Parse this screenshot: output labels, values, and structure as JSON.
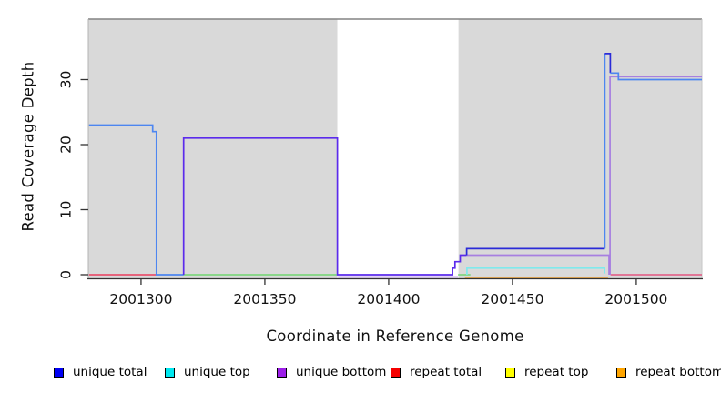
{
  "figure": {
    "xlabel": "Coordinate in Reference Genome",
    "ylabel": "Read Coverage Depth"
  },
  "chart_data": {
    "type": "line",
    "title": "",
    "xlabel": "Coordinate in Reference Genome",
    "ylabel": "Read Coverage Depth",
    "xlim": [
      2001278.7,
      2001526.5
    ],
    "ylim": [
      -0.56,
      39.3
    ],
    "grid": "off",
    "x_ticks": [
      {
        "value": 2001300,
        "label": "2001300"
      },
      {
        "value": 2001350,
        "label": "2001350"
      },
      {
        "value": 2001400,
        "label": "2001400"
      },
      {
        "value": 2001450,
        "label": "2001450"
      },
      {
        "value": 2001500,
        "label": "2001500"
      }
    ],
    "y_ticks": [
      {
        "value": 0,
        "label": "0"
      },
      {
        "value": 10,
        "label": "10"
      },
      {
        "value": 20,
        "label": "20"
      },
      {
        "value": 30,
        "label": "30"
      }
    ],
    "background_regions": [
      {
        "name": "region-gray-left",
        "x0": 2001278.7,
        "x1": 2001379.3,
        "color": "#D9D9D9"
      },
      {
        "name": "region-white-gap",
        "x0": 2001379.3,
        "x1": 2001428.2,
        "color": "#FFFFFF"
      },
      {
        "name": "region-gray-right",
        "x0": 2001428.2,
        "x1": 2001526.5,
        "color": "#D9D9D9"
      }
    ],
    "series": [
      {
        "name": "repeat-total-left-zero",
        "color": "#E8536F",
        "points": [
          [
            2001279,
            0
          ],
          [
            2001306,
            0
          ]
        ]
      },
      {
        "name": "zero-line-green-left",
        "color": "#7ED67E",
        "points": [
          [
            2001317,
            0
          ],
          [
            2001379,
            0
          ]
        ]
      },
      {
        "name": "zero-line-green-mid",
        "color": "#7ED67E",
        "points": [
          [
            2001428,
            0
          ],
          [
            2001433,
            0
          ]
        ]
      },
      {
        "name": "repeat-total-right-zero",
        "color": "#E0688C",
        "points": [
          [
            2001489.6,
            0
          ],
          [
            2001526.5,
            0
          ]
        ]
      },
      {
        "name": "repeat-bottom-zero",
        "color": "#F2A233",
        "points": [
          [
            2001430.8,
            -0.4
          ],
          [
            2001488.6,
            -0.4
          ]
        ]
      },
      {
        "name": "unique-bottom-zero-gap",
        "color": "#B18BE4",
        "points": [
          [
            2001379.5,
            -0.35
          ],
          [
            2001428,
            -0.35
          ]
        ]
      },
      {
        "name": "unique-top-1",
        "color": "#7FE9EC",
        "points": [
          [
            2001431.6,
            0
          ],
          [
            2001431.6,
            1
          ],
          [
            2001487.2,
            1
          ],
          [
            2001487.2,
            0.2
          ]
        ]
      },
      {
        "name": "unique-bottom-3",
        "color": "#A77FE0",
        "points": [
          [
            2001431.6,
            3
          ],
          [
            2001489,
            3
          ],
          [
            2001489,
            0
          ]
        ]
      },
      {
        "name": "unique-bottom-30",
        "color": "#A77FE0",
        "points": [
          [
            2001489.4,
            0
          ],
          [
            2001489.4,
            30.45
          ],
          [
            2001526.5,
            30.45
          ]
        ]
      },
      {
        "name": "unique-total-23",
        "color": "#4D86F0",
        "points": [
          [
            2001279,
            23
          ],
          [
            2001304.7,
            23
          ],
          [
            2001304.7,
            22
          ],
          [
            2001306.2,
            22
          ],
          [
            2001306.2,
            0
          ],
          [
            2001317.2,
            0
          ]
        ]
      },
      {
        "name": "unique-total-21",
        "color": "#5B2BEC",
        "points": [
          [
            2001317.2,
            0
          ],
          [
            2001317.2,
            21
          ],
          [
            2001379.3,
            21
          ],
          [
            2001379.3,
            0
          ],
          [
            2001425.8,
            0
          ],
          [
            2001425.8,
            1
          ],
          [
            2001426.8,
            1
          ],
          [
            2001426.8,
            2
          ],
          [
            2001428.9,
            2
          ],
          [
            2001428.9,
            3
          ],
          [
            2001431.5,
            3
          ]
        ]
      },
      {
        "name": "unique-total-4",
        "color": "#2B2BD8",
        "points": [
          [
            2001431.5,
            3
          ],
          [
            2001431.5,
            4
          ],
          [
            2001487.3,
            4
          ]
        ]
      },
      {
        "name": "unique-total-rise",
        "color": "#4D86F0",
        "points": [
          [
            2001487.3,
            4
          ],
          [
            2001487.3,
            34
          ]
        ]
      },
      {
        "name": "unique-total-spike-34",
        "color": "#2B2BD8",
        "points": [
          [
            2001487.3,
            34
          ],
          [
            2001489.5,
            34
          ],
          [
            2001489.5,
            31
          ]
        ]
      },
      {
        "name": "unique-total-30",
        "color": "#4D86F0",
        "points": [
          [
            2001489.5,
            31
          ],
          [
            2001492.8,
            31
          ],
          [
            2001492.8,
            30
          ],
          [
            2001526.5,
            30
          ]
        ]
      }
    ],
    "legend_position": "bottom",
    "legend": [
      {
        "label": "unique total",
        "color": "#0000F5"
      },
      {
        "label": "unique top",
        "color": "#00E8F0"
      },
      {
        "label": "unique bottom",
        "color": "#9C1FE8"
      },
      {
        "label": "repeat total",
        "color": "#F50000"
      },
      {
        "label": "repeat top",
        "color": "#FFFF00"
      },
      {
        "label": "repeat bottom",
        "color": "#FFA500"
      }
    ]
  }
}
